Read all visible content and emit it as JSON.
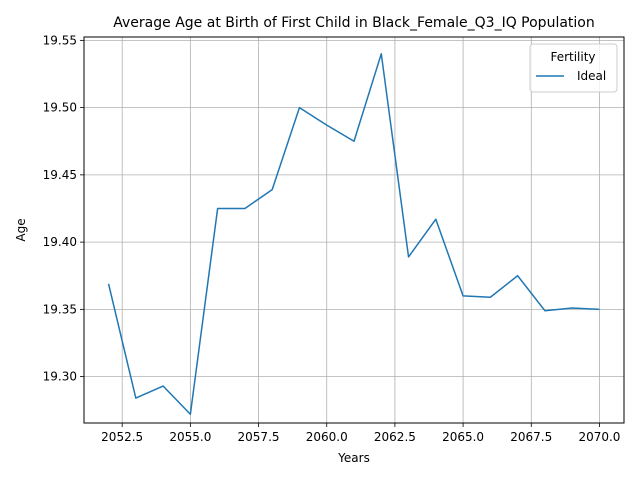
{
  "chart_data": {
    "type": "line",
    "title": "Average Age at Birth of First Child in Black_Female_Q3_IQ Population",
    "xlabel": "Years",
    "ylabel": "Age",
    "xlim": [
      2051.1,
      2070.9
    ],
    "ylim": [
      19.2655,
      19.5525
    ],
    "x_ticks": [
      2052.5,
      2055.0,
      2057.5,
      2060.0,
      2062.5,
      2065.0,
      2067.5,
      2070.0
    ],
    "x_tick_labels": [
      "2052.5",
      "2055.0",
      "2057.5",
      "2060.0",
      "2062.5",
      "2065.0",
      "2067.5",
      "2070.0"
    ],
    "y_ticks": [
      19.3,
      19.35,
      19.4,
      19.45,
      19.5,
      19.55
    ],
    "y_tick_labels": [
      "19.30",
      "19.35",
      "19.40",
      "19.45",
      "19.50",
      "19.55"
    ],
    "grid": true,
    "legend": {
      "title": "Fertility",
      "position": "top-right"
    },
    "series": [
      {
        "name": "Ideal",
        "color": "#1f77b4",
        "x": [
          2052,
          2053,
          2054,
          2055,
          2056,
          2057,
          2058,
          2059,
          2060,
          2061,
          2062,
          2063,
          2064,
          2065,
          2066,
          2067,
          2068,
          2069,
          2070
        ],
        "y": [
          19.369,
          19.284,
          19.293,
          19.272,
          19.425,
          19.425,
          19.439,
          19.5,
          19.487,
          19.475,
          19.54,
          19.389,
          19.417,
          19.36,
          19.359,
          19.375,
          19.349,
          19.351,
          19.35
        ]
      }
    ]
  }
}
